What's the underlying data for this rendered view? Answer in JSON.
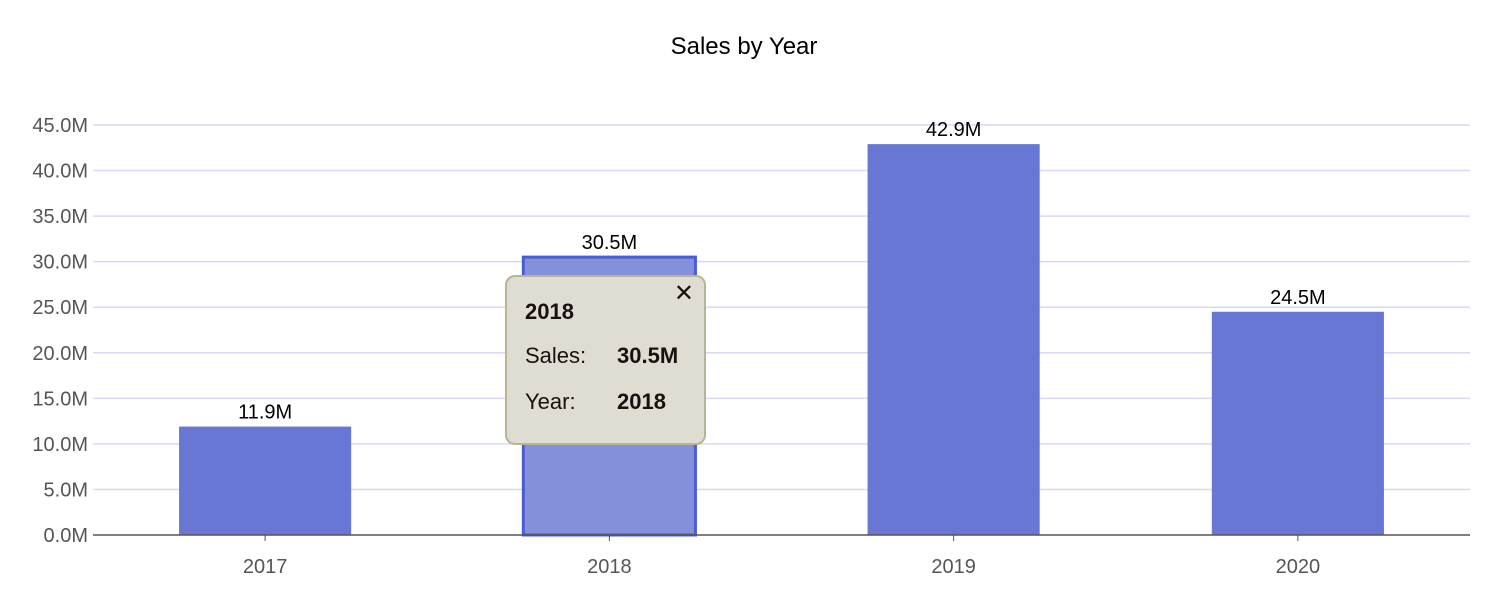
{
  "chart_data": {
    "type": "bar",
    "title": "Sales by Year",
    "xlabel": "",
    "ylabel": "",
    "categories": [
      "2017",
      "2018",
      "2019",
      "2020"
    ],
    "values": [
      11.9,
      30.5,
      42.9,
      24.5
    ],
    "data_labels": [
      "11.9M",
      "30.5M",
      "42.9M",
      "24.5M"
    ],
    "unit": "M",
    "ylim": [
      0,
      45
    ],
    "yticks": [
      0,
      5,
      10,
      15,
      20,
      25,
      30,
      35,
      40,
      45
    ],
    "ytick_labels": [
      "0.0M",
      "5.0M",
      "10.0M",
      "15.0M",
      "20.0M",
      "25.0M",
      "30.0M",
      "35.0M",
      "40.0M",
      "45.0M"
    ],
    "grid": true,
    "legend": "none",
    "highlighted_index": 1,
    "colors": {
      "bar": "#6877d3",
      "bar_highlight": "#8490da",
      "bar_highlight_border": "#4a5cd6",
      "grid": "#d6daf3",
      "axis": "#555555"
    }
  },
  "tooltip": {
    "title": "2018",
    "close_icon": "close-icon",
    "rows": [
      {
        "label": "Sales:",
        "value": "30.5M"
      },
      {
        "label": "Year:",
        "value": "2018"
      }
    ]
  }
}
